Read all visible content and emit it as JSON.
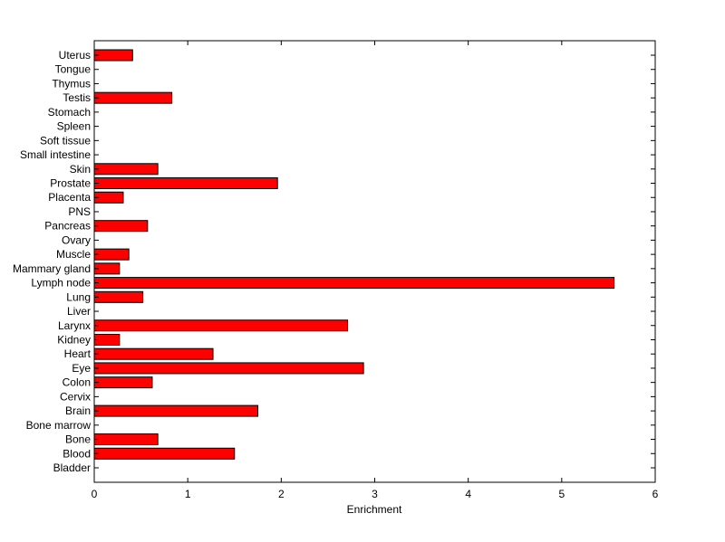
{
  "chart_data": {
    "type": "bar",
    "orientation": "horizontal",
    "title": "",
    "xlabel": "Enrichment",
    "ylabel": "",
    "xlim": [
      0,
      6
    ],
    "x_ticks": [
      0,
      1,
      2,
      3,
      4,
      5,
      6
    ],
    "grid": false,
    "legend": "none",
    "bar_color": "#ff0000",
    "bar_edge_color": "#000000",
    "categories": [
      "Bladder",
      "Blood",
      "Bone",
      "Bone marrow",
      "Brain",
      "Cervix",
      "Colon",
      "Eye",
      "Heart",
      "Kidney",
      "Larynx",
      "Liver",
      "Lung",
      "Lymph node",
      "Mammary gland",
      "Muscle",
      "Ovary",
      "Pancreas",
      "PNS",
      "Placenta",
      "Prostate",
      "Skin",
      "Small intestine",
      "Soft tissue",
      "Spleen",
      "Stomach",
      "Testis",
      "Thymus",
      "Tongue",
      "Uterus"
    ],
    "values": [
      0,
      1.5,
      0.68,
      0,
      1.75,
      0,
      0.62,
      2.88,
      1.27,
      0.27,
      2.71,
      0,
      0.52,
      5.56,
      0.27,
      0.37,
      0,
      0.57,
      0,
      0.31,
      1.96,
      0.68,
      0,
      0,
      0,
      0,
      0.83,
      0,
      0,
      0.41
    ]
  }
}
